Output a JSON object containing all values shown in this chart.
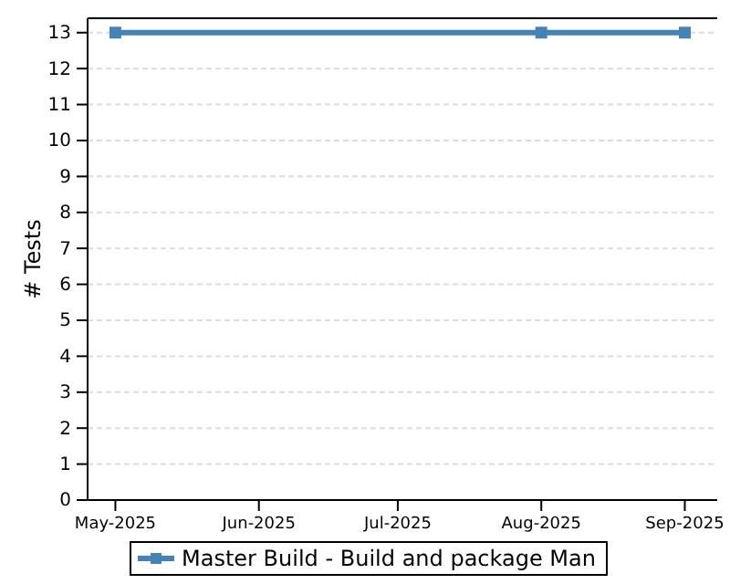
{
  "chart_data": {
    "type": "line",
    "ylabel": "# Tests",
    "x": [
      "2025-05-01",
      "2025-08-01",
      "2025-09-01"
    ],
    "series": [
      {
        "name": "Master Build - Build and package Man",
        "color": "#4682b4",
        "values": [
          13,
          13,
          13
        ]
      }
    ],
    "xlim": [
      "2025-04-25",
      "2025-09-08"
    ],
    "xticks": [
      {
        "value": "2025-05-01",
        "label": "May-2025"
      },
      {
        "value": "2025-06-01",
        "label": "Jun-2025"
      },
      {
        "value": "2025-07-01",
        "label": "Jul-2025"
      },
      {
        "value": "2025-08-01",
        "label": "Aug-2025"
      },
      {
        "value": "2025-09-01",
        "label": "Sep-2025"
      }
    ],
    "ylim": [
      0,
      13.4
    ],
    "yticks": [
      0,
      1,
      2,
      3,
      4,
      5,
      6,
      7,
      8,
      9,
      10,
      11,
      12,
      13
    ],
    "grid": "y",
    "legend": "bottom",
    "marker": "square",
    "line_style": "solid"
  }
}
